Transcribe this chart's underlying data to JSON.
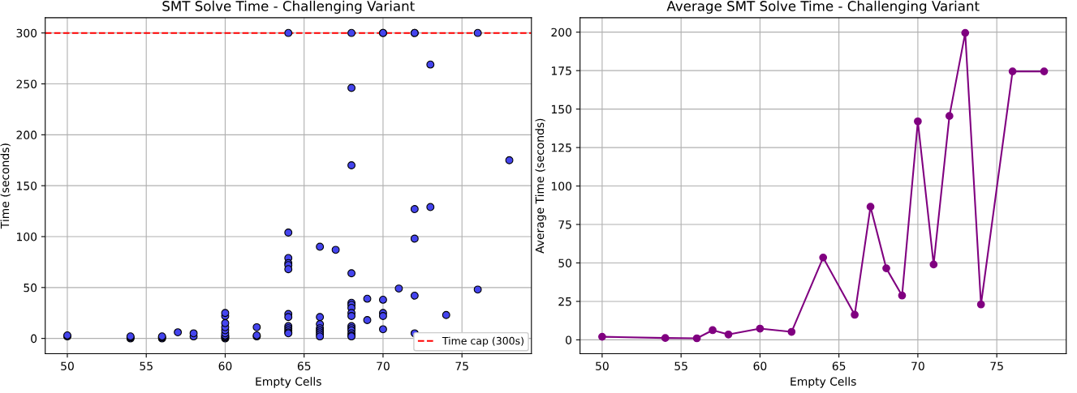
{
  "chart_data": [
    {
      "type": "scatter",
      "title": "SMT Solve Time - Challenging Variant",
      "xlabel": "Empty Cells",
      "ylabel": "Time (seconds)",
      "series": [
        {
          "color": "#4444ee",
          "x": [
            50,
            50,
            54,
            54,
            54,
            56,
            56,
            56,
            57,
            58,
            58,
            60,
            60,
            60,
            60,
            60,
            60,
            60,
            60,
            60,
            60,
            62,
            62,
            62,
            64,
            64,
            64,
            64,
            64,
            64,
            64,
            64,
            64,
            64,
            64,
            64,
            64,
            66,
            66,
            66,
            66,
            66,
            66,
            66,
            66,
            67,
            68,
            68,
            68,
            68,
            68,
            68,
            68,
            68,
            68,
            68,
            68,
            68,
            68,
            68,
            68,
            69,
            69,
            70,
            70,
            70,
            70,
            70,
            70,
            71,
            72,
            72,
            72,
            72,
            72,
            72,
            73,
            73,
            74,
            76,
            76,
            78
          ],
          "values": [
            2,
            3,
            0,
            1,
            2,
            0,
            1,
            2,
            6,
            2,
            5,
            0,
            1,
            2,
            3,
            5,
            8,
            11,
            15,
            22,
            25,
            2,
            3,
            11,
            300,
            104,
            79,
            74,
            72,
            68,
            24,
            21,
            12,
            10,
            8,
            6,
            5,
            90,
            21,
            14,
            10,
            8,
            6,
            4,
            2,
            87,
            300,
            246,
            170,
            64,
            35,
            33,
            30,
            25,
            22,
            12,
            10,
            8,
            5,
            3,
            2,
            39,
            18,
            300,
            300,
            38,
            25,
            22,
            9,
            49,
            300,
            300,
            127,
            98,
            42,
            5,
            269,
            129,
            23,
            300,
            48,
            175
          ]
        }
      ],
      "ref_lines": [
        {
          "axis": "y",
          "value": 300,
          "label": "Time cap (300s)",
          "color": "#ff0000",
          "line_style": "dashed"
        }
      ],
      "xlim": [
        48.6,
        79.4
      ],
      "ylim": [
        -15,
        315
      ],
      "xticks": [
        50,
        55,
        60,
        65,
        70,
        75
      ],
      "yticks": [
        0,
        50,
        100,
        150,
        200,
        250,
        300
      ],
      "grid": true,
      "legend": "bottom right",
      "marker": "circle"
    },
    {
      "type": "line",
      "title": "Average SMT Solve Time - Challenging Variant",
      "xlabel": "Empty Cells",
      "ylabel": "Average Time (seconds)",
      "series": [
        {
          "color": "#800080",
          "x": [
            50,
            54,
            56,
            57,
            58,
            60,
            62,
            64,
            66,
            67,
            68,
            69,
            70,
            71,
            72,
            73,
            74,
            76,
            78
          ],
          "values": [
            2,
            1.2,
            1,
            6.3,
            3.5,
            7.3,
            5.2,
            53.5,
            16.3,
            86.5,
            46.5,
            28.8,
            142,
            49,
            145.5,
            199.5,
            23,
            174.5,
            174.5
          ]
        }
      ],
      "xlim": [
        48.6,
        79.4
      ],
      "ylim": [
        -9,
        209.4
      ],
      "xticks": [
        50,
        55,
        60,
        65,
        70,
        75
      ],
      "yticks": [
        0,
        25,
        50,
        75,
        100,
        125,
        150,
        175,
        200
      ],
      "grid": true,
      "marker": "circle",
      "line_style": "solid"
    }
  ]
}
